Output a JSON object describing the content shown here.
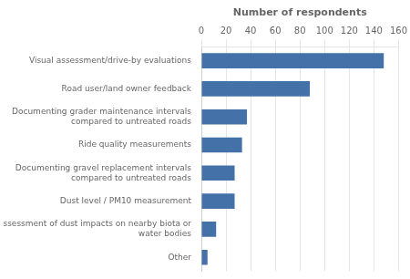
{
  "chart_data": {
    "type": "bar",
    "orientation": "horizontal",
    "categories": [
      "Other",
      "Assessment of dust impacts on nearby biota or\nwater bodies",
      "Dust level / PM10 measurement",
      "Documenting gravel replacement intervals\ncompared to untreated roads",
      "Ride quality measurements",
      "Documenting grader maintenance intervals\ncompared to untreated roads",
      "Road user/land owner feedback",
      "Visual assessment/drive-by evaluations"
    ],
    "values": [
      5,
      12,
      27,
      27,
      33,
      37,
      88,
      148
    ],
    "color": "#4472a8",
    "xlabel": "Number of respondents",
    "xlim": [
      0,
      160
    ],
    "xticks": [
      0,
      20,
      40,
      60,
      80,
      100,
      120,
      140,
      160
    ],
    "grid": true
  }
}
